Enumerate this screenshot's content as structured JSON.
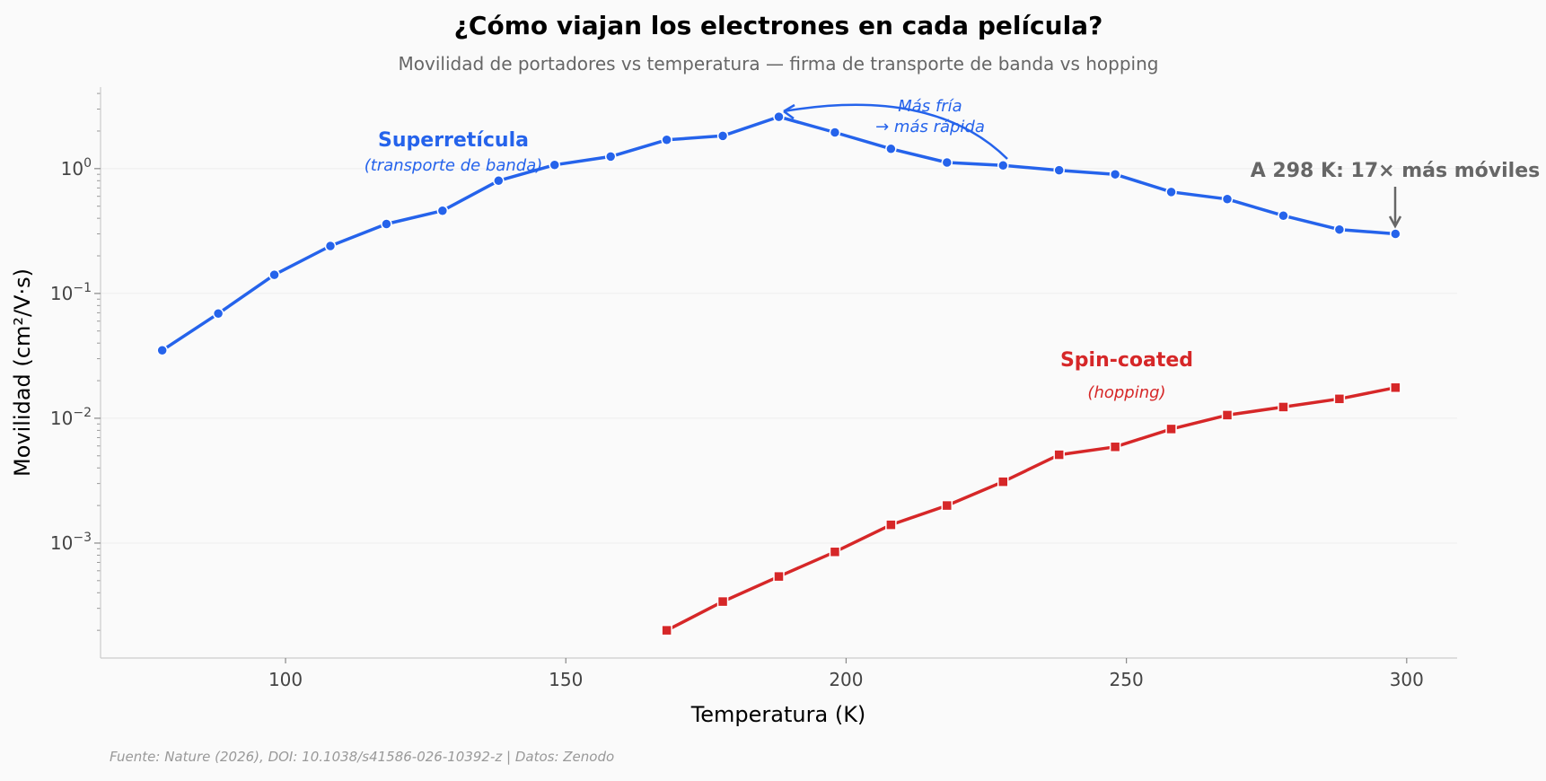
{
  "chart_data": {
    "type": "line",
    "title": "¿Cómo viajan los electrones en cada película?",
    "subtitle": "Movilidad de portadores vs temperatura — firma de transporte de banda vs hopping",
    "xlabel": "Temperatura (K)",
    "ylabel": "Movilidad (cm²/V·s)",
    "yscale": "log",
    "xlim": [
      67,
      309
    ],
    "ylim": [
      0.00012,
      4.5
    ],
    "xticks": [
      100,
      150,
      200,
      250,
      300
    ],
    "yticks": [
      {
        "value": 1,
        "base": "10",
        "exp": "0"
      },
      {
        "value": 0.1,
        "base": "10",
        "exp": "−1"
      },
      {
        "value": 0.01,
        "base": "10",
        "exp": "−2"
      },
      {
        "value": 0.001,
        "base": "10",
        "exp": "−3"
      }
    ],
    "grid": true,
    "series": [
      {
        "name": "Superretícula",
        "label_sub": "(transporte de banda)",
        "color": "#2563eb",
        "marker": "circle",
        "x": [
          78,
          88,
          98,
          108,
          118,
          128,
          138,
          148,
          158,
          168,
          178,
          188,
          198,
          208,
          218,
          228,
          238,
          248,
          258,
          268,
          278,
          288,
          298
        ],
        "y": [
          0.035,
          0.069,
          0.141,
          0.24,
          0.36,
          0.46,
          0.8,
          1.07,
          1.25,
          1.7,
          1.83,
          2.6,
          1.95,
          1.44,
          1.12,
          1.06,
          0.97,
          0.9,
          0.65,
          0.57,
          0.42,
          0.325,
          0.3
        ]
      },
      {
        "name": "Spin-coated",
        "label_sub": "(hopping)",
        "color": "#d62728",
        "marker": "square",
        "x": [
          168,
          178,
          188,
          198,
          208,
          218,
          228,
          238,
          248,
          258,
          268,
          278,
          288,
          298
        ],
        "y": [
          0.0002,
          0.00034,
          0.00054,
          0.00085,
          0.0014,
          0.002,
          0.0031,
          0.0051,
          0.0059,
          0.0082,
          0.0106,
          0.0123,
          0.0143,
          0.0176
        ]
      }
    ],
    "annotations": {
      "peak_note_line1": "Más fría",
      "peak_note_line2": "→ más rápida",
      "ratio_note": "A 298 K: 17× más móviles",
      "ratio_color": "#666666"
    },
    "source": "Fuente: Nature (2026), DOI: 10.1038/s41586-026-10392-z | Datos: Zenodo"
  }
}
